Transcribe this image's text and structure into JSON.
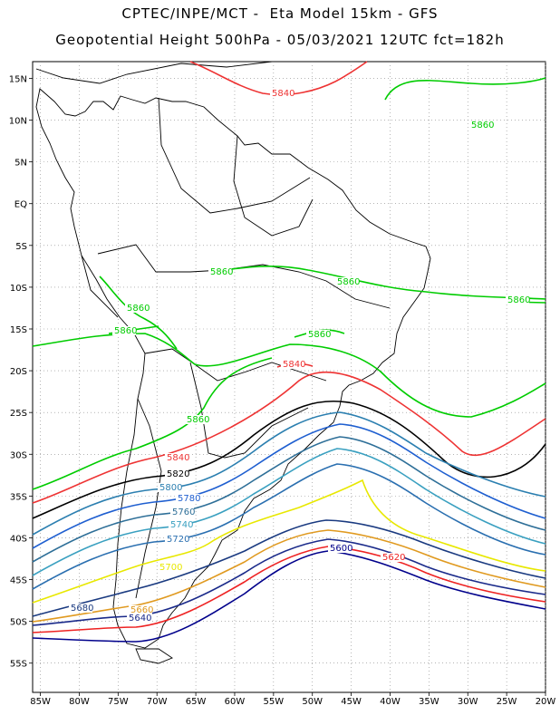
{
  "header": {
    "line1": "CPTEC/INPE/MCT -  Eta Model 15km - GFS",
    "line2": "Geopotential Height 500hPa - 05/03/2021 12UTC fct=182h"
  },
  "axes": {
    "lon_ticks": [
      "85W",
      "80W",
      "75W",
      "70W",
      "65W",
      "60W",
      "55W",
      "50W",
      "45W",
      "40W",
      "35W",
      "30W",
      "25W",
      "20W"
    ],
    "lat_ticks": [
      "15N",
      "10N",
      "5N",
      "EQ",
      "5S",
      "10S",
      "15S",
      "20S",
      "25S",
      "30S",
      "35S",
      "40S",
      "45S",
      "50S",
      "55S"
    ],
    "lon_range": [
      -86,
      -20
    ],
    "lat_range": [
      17,
      -58.5
    ]
  },
  "contours": [
    {
      "level": "5860",
      "color": "#00cc00"
    },
    {
      "level": "5840",
      "color": "#ee3333"
    },
    {
      "level": "5820",
      "color": "#000000"
    },
    {
      "level": "5800",
      "color": "#2b7fb0"
    },
    {
      "level": "5780",
      "color": "#1f5fd0"
    },
    {
      "level": "5760",
      "color": "#2e6f98"
    },
    {
      "level": "5740",
      "color": "#3aa0c0"
    },
    {
      "level": "5720",
      "color": "#2a6fb0"
    },
    {
      "level": "5700",
      "color": "#e8e800"
    },
    {
      "level": "5680",
      "color": "#1a3a80"
    },
    {
      "level": "5660",
      "color": "#e09a20"
    },
    {
      "level": "5640",
      "color": "#1a2a8a"
    },
    {
      "level": "5620",
      "color": "#ee2222"
    },
    {
      "level": "5600",
      "color": "#00008b"
    }
  ]
}
